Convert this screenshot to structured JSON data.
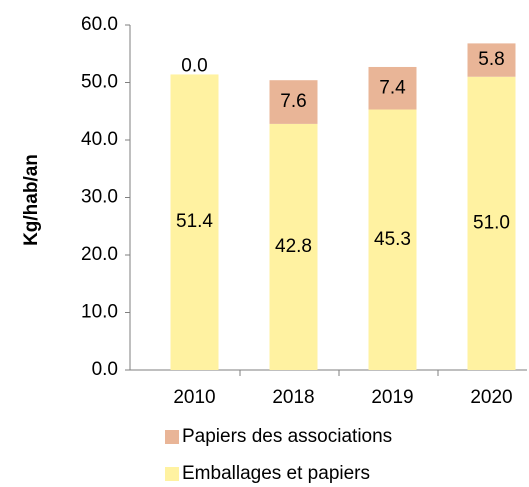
{
  "chart_data": {
    "type": "stacked_bar",
    "y_label": "Kg/hab/an",
    "categories": [
      "2010",
      "2018",
      "2019",
      "2020"
    ],
    "series": [
      {
        "name": "Emballages et papiers",
        "color": "#fff2a1",
        "values": [
          51.4,
          42.8,
          45.3,
          51.0
        ],
        "value_labels": [
          "51.4",
          "42.8",
          "45.3",
          "51.0"
        ]
      },
      {
        "name": "Papiers des associations",
        "color": "#e9b597",
        "values": [
          0.0,
          7.6,
          7.4,
          5.8
        ],
        "value_labels": [
          "0.0",
          "7.6",
          "7.4",
          "5.8"
        ]
      }
    ],
    "ylim": [
      0,
      60
    ],
    "yticks": [
      {
        "value": 0,
        "label": "0.0"
      },
      {
        "value": 10,
        "label": "10.0"
      },
      {
        "value": 20,
        "label": "20.0"
      },
      {
        "value": 30,
        "label": "30.0"
      },
      {
        "value": 40,
        "label": "40.0"
      },
      {
        "value": 50,
        "label": "50.0"
      },
      {
        "value": 60,
        "label": "60.0"
      }
    ],
    "grid": false
  }
}
